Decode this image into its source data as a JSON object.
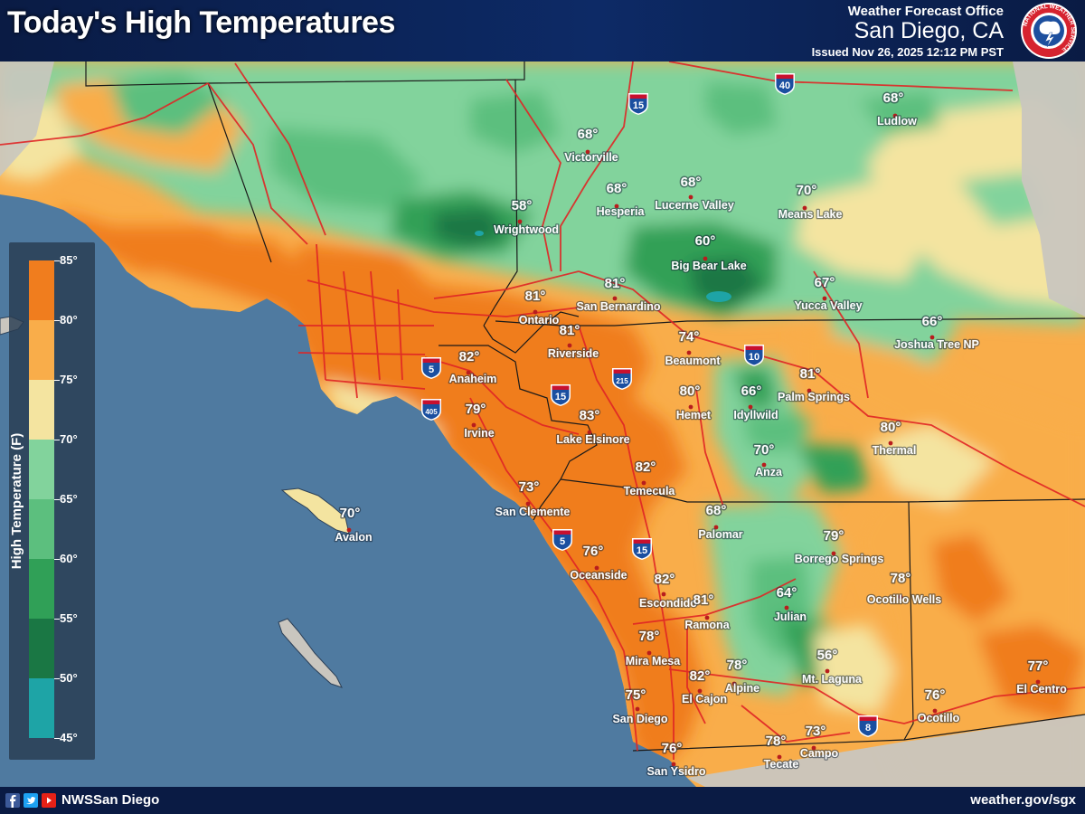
{
  "header": {
    "title": "Today's High Temperatures",
    "office_label": "Weather Forecast Office",
    "office_city": "San Diego, CA",
    "issued": "Issued Nov 26, 2025 12:12 PM PST",
    "logo_text": "NATIONAL WEATHER SERVICE"
  },
  "legend": {
    "title": "High Temperature (F)",
    "bins": [
      {
        "from": 80,
        "to": 85,
        "color": "#f07d1e"
      },
      {
        "from": 75,
        "to": 80,
        "color": "#f9ad4a"
      },
      {
        "from": 70,
        "to": 75,
        "color": "#f4e4a0"
      },
      {
        "from": 65,
        "to": 70,
        "color": "#82d39c"
      },
      {
        "from": 60,
        "to": 65,
        "color": "#5cbf7e"
      },
      {
        "from": 55,
        "to": 60,
        "color": "#30a057"
      },
      {
        "from": 50,
        "to": 55,
        "color": "#1a7744"
      },
      {
        "from": 45,
        "to": 50,
        "color": "#1ea4a6"
      }
    ],
    "ticks": [
      "85°",
      "80°",
      "75°",
      "70°",
      "65°",
      "60°",
      "55°",
      "50°",
      "45°"
    ]
  },
  "highways": [
    {
      "label": "15",
      "type": "interstate"
    },
    {
      "label": "40",
      "type": "interstate"
    },
    {
      "label": "10",
      "type": "interstate"
    },
    {
      "label": "215",
      "type": "interstate"
    },
    {
      "label": "15",
      "type": "interstate"
    },
    {
      "label": "5",
      "type": "interstate"
    },
    {
      "label": "405",
      "type": "interstate"
    },
    {
      "label": "5",
      "type": "interstate"
    },
    {
      "label": "15",
      "type": "interstate"
    },
    {
      "label": "8",
      "type": "interstate"
    }
  ],
  "cities": [
    {
      "name": "Ludlow",
      "temp": "68°"
    },
    {
      "name": "Victorville",
      "temp": "68°"
    },
    {
      "name": "Hesperia",
      "temp": "68°"
    },
    {
      "name": "Lucerne Valley",
      "temp": "68°"
    },
    {
      "name": "Means Lake",
      "temp": "70°"
    },
    {
      "name": "Wrightwood",
      "temp": "58°"
    },
    {
      "name": "Big Bear Lake",
      "temp": "60°"
    },
    {
      "name": "Ontario",
      "temp": "81°"
    },
    {
      "name": "San Bernardino",
      "temp": "81°"
    },
    {
      "name": "Yucca Valley",
      "temp": "67°"
    },
    {
      "name": "Joshua Tree NP",
      "temp": "66°"
    },
    {
      "name": "Riverside",
      "temp": "81°"
    },
    {
      "name": "Beaumont",
      "temp": "74°"
    },
    {
      "name": "Anaheim",
      "temp": "82°"
    },
    {
      "name": "Palm Springs",
      "temp": "81°"
    },
    {
      "name": "Hemet",
      "temp": "80°"
    },
    {
      "name": "Idyllwild",
      "temp": "66°"
    },
    {
      "name": "Irvine",
      "temp": "79°"
    },
    {
      "name": "Lake Elsinore",
      "temp": "83°"
    },
    {
      "name": "Thermal",
      "temp": "80°"
    },
    {
      "name": "Anza",
      "temp": "70°"
    },
    {
      "name": "Temecula",
      "temp": "82°"
    },
    {
      "name": "San Clemente",
      "temp": "73°"
    },
    {
      "name": "Avalon",
      "temp": "70°"
    },
    {
      "name": "Palomar",
      "temp": "68°"
    },
    {
      "name": "Oceanside",
      "temp": "76°"
    },
    {
      "name": "Borrego Springs",
      "temp": "79°"
    },
    {
      "name": "Ocotillo Wells",
      "temp": "78°"
    },
    {
      "name": "Escondido",
      "temp": "82°"
    },
    {
      "name": "Julian",
      "temp": "64°"
    },
    {
      "name": "Ramona",
      "temp": "81°"
    },
    {
      "name": "Mira Mesa",
      "temp": "78°"
    },
    {
      "name": "Mt. Laguna",
      "temp": "56°"
    },
    {
      "name": "El Cajon",
      "temp": "82°"
    },
    {
      "name": "Alpine",
      "temp": "78°"
    },
    {
      "name": "San Diego",
      "temp": "75°"
    },
    {
      "name": "El Centro",
      "temp": "77°"
    },
    {
      "name": "Ocotillo",
      "temp": "76°"
    },
    {
      "name": "Campo",
      "temp": "73°"
    },
    {
      "name": "Tecate",
      "temp": "78°"
    },
    {
      "name": "San Ysidro",
      "temp": "76°"
    }
  ],
  "footer": {
    "handle": "NWSSan Diego",
    "website": "weather.gov/sgx"
  },
  "colors": {
    "ocean": "#4f7aa0",
    "offmap": "#c9c6bf",
    "city_dot": "#b81d1d",
    "road": "#e02525",
    "border": "#1a1a1a",
    "interstate_blue": "#1b4fa0",
    "interstate_red": "#c8102e"
  }
}
